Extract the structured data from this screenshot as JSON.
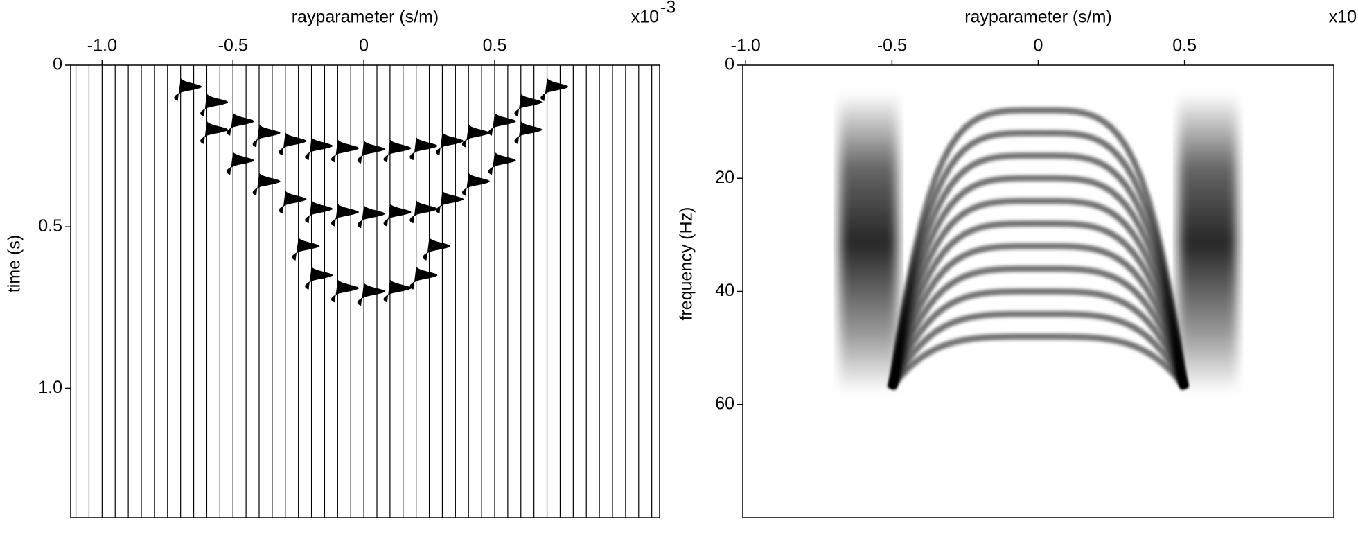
{
  "chart_data": [
    {
      "type": "wiggle",
      "xlabel": "rayparameter (s/m)",
      "ylabel": "time (s)",
      "x_multiplier": {
        "base": "x10",
        "exponent": "-3"
      },
      "xlim": [
        -1.12,
        1.13
      ],
      "ylim": [
        1.4,
        0
      ],
      "color": "#000000",
      "xticks": [
        {
          "value": -1,
          "label": "-1.0"
        },
        -0.5,
        0,
        0.5
      ],
      "yticks": [
        0,
        0.5,
        {
          "value": 1,
          "label": "1.0"
        }
      ],
      "trace_x": [
        -1.1,
        -1.05,
        -1.0,
        -0.95,
        -0.9,
        -0.85,
        -0.8,
        -0.75,
        -0.7,
        -0.65,
        -0.6,
        -0.55,
        -0.5,
        -0.45,
        -0.4,
        -0.35,
        -0.3,
        -0.25,
        -0.2,
        -0.15,
        -0.1,
        -0.05,
        0,
        0.05,
        0.1,
        0.15,
        0.2,
        0.25,
        0.3,
        0.35,
        0.4,
        0.45,
        0.5,
        0.55,
        0.6,
        0.65,
        0.7,
        0.75,
        0.8,
        0.85,
        0.9,
        0.95,
        1.0,
        1.05,
        1.1
      ],
      "series": [
        {
          "x": [
            -0.7,
            -0.6,
            -0.5,
            -0.4,
            -0.3,
            -0.2,
            -0.1,
            0,
            0.1,
            0.2,
            0.3,
            0.4,
            0.5,
            0.6,
            0.7
          ],
          "values": [
            0.067,
            0.115,
            0.174,
            0.21,
            0.235,
            0.25,
            0.257,
            0.26,
            0.257,
            0.25,
            0.235,
            0.21,
            0.174,
            0.115,
            0.067
          ]
        },
        {
          "x": [
            -0.6,
            -0.5,
            -0.4,
            -0.3,
            -0.2,
            -0.1,
            0,
            0.1,
            0.2,
            0.3,
            0.4,
            0.5,
            0.6
          ],
          "values": [
            0.2,
            0.295,
            0.36,
            0.415,
            0.445,
            0.455,
            0.46,
            0.455,
            0.445,
            0.415,
            0.36,
            0.295,
            0.2
          ]
        },
        {
          "x": [
            -0.25,
            -0.2,
            -0.1,
            0,
            0.1,
            0.2,
            0.25
          ],
          "values": [
            0.56,
            0.65,
            0.69,
            0.7,
            0.69,
            0.65,
            0.56
          ]
        }
      ]
    },
    {
      "type": "arcs",
      "xlabel": "rayparameter (s/m)",
      "ylabel": "frequency (Hz)",
      "x_multiplier": {
        "base": "x10"
      },
      "xlim": [
        -1.01,
        1.01
      ],
      "ylim": [
        80,
        0
      ],
      "color": "#000000",
      "xticks": [
        {
          "value": -1,
          "label": "-1.0"
        },
        -0.5,
        0,
        0.5
      ],
      "yticks": [
        0,
        20,
        40,
        60
      ],
      "arc_apex": [
        8,
        12,
        16,
        20,
        24,
        28,
        32,
        36,
        40,
        44,
        48
      ],
      "arc_halfwidth": 0.5,
      "arc_end_frequency": 57,
      "side_zones": [
        [
          -0.68,
          -0.48
        ],
        [
          0.48,
          0.68
        ]
      ],
      "zone_frequency": [
        5,
        58
      ]
    }
  ]
}
